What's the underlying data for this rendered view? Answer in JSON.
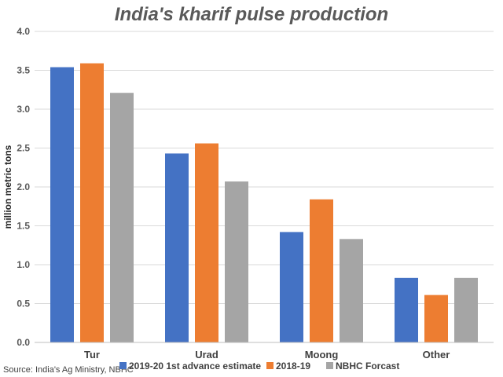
{
  "chart_data": {
    "type": "bar",
    "title": "India's kharif pulse production",
    "ylabel": "million metric tons",
    "xlabel": "",
    "categories": [
      "Tur",
      "Urad",
      "Moong",
      "Other"
    ],
    "series": [
      {
        "name": "2019-20 1st advance estimate",
        "color": "#4472c4",
        "values": [
          3.54,
          2.43,
          1.42,
          0.83
        ]
      },
      {
        "name": "2018-19",
        "color": "#ed7d31",
        "values": [
          3.59,
          2.56,
          1.84,
          0.61
        ]
      },
      {
        "name": "NBHC Forcast",
        "color": "#a5a5a5",
        "values": [
          3.21,
          2.07,
          1.33,
          0.83
        ]
      }
    ],
    "ylim": [
      0,
      4.0
    ],
    "yticks": [
      "0.0",
      "0.5",
      "1.0",
      "1.5",
      "2.0",
      "2.5",
      "3.0",
      "3.5",
      "4.0"
    ],
    "grid": true,
    "legend_position": "bottom"
  },
  "source": "Source: India's Ag Ministry, NBHC"
}
